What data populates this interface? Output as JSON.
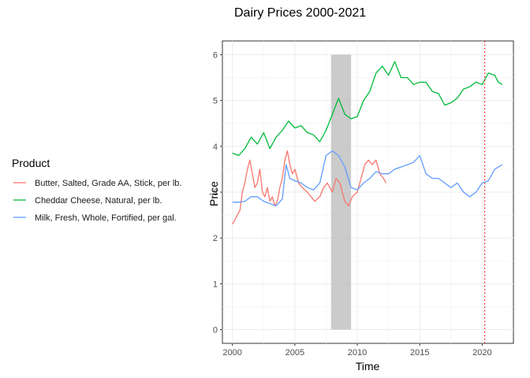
{
  "chart_data": {
    "type": "line",
    "title": "Dairy Prices 2000-2021",
    "xlabel": "Time",
    "ylabel": "Price",
    "xlim": [
      1999.2,
      2022.5
    ],
    "ylim": [
      -0.3,
      6.3
    ],
    "x_ticks": [
      2000,
      2005,
      2010,
      2015,
      2020
    ],
    "y_ticks": [
      0,
      1,
      2,
      3,
      4,
      5,
      6
    ],
    "grid": true,
    "legend": {
      "title": "Product",
      "position": "left"
    },
    "recession_band": {
      "x": [
        2007.9,
        2009.5
      ],
      "y": [
        0,
        6
      ],
      "color": "#bebebe"
    },
    "vline": {
      "x": 2020.2,
      "color": "#ff0000",
      "style": "dotted"
    },
    "series": [
      {
        "name": "Butter, Salted, Grade AA, Stick, per lb.",
        "color": "#f8766d",
        "x": [
          2000.0,
          2000.2,
          2000.4,
          2000.6,
          2000.8,
          2001.0,
          2001.2,
          2001.4,
          2001.6,
          2001.8,
          2002.0,
          2002.2,
          2002.4,
          2002.6,
          2002.8,
          2003.0,
          2003.2,
          2003.4,
          2003.6,
          2003.8,
          2004.0,
          2004.2,
          2004.4,
          2004.6,
          2004.8,
          2005.0,
          2005.3,
          2005.6,
          2006.0,
          2006.3,
          2006.6,
          2007.0,
          2007.3,
          2007.6,
          2008.0,
          2008.3,
          2008.6,
          2009.0,
          2009.3,
          2009.6,
          2010.0,
          2010.3,
          2010.6,
          2010.9,
          2011.2,
          2011.5,
          2011.8,
          2012.1,
          2012.3
        ],
        "y": [
          2.3,
          2.4,
          2.5,
          2.6,
          3.0,
          3.2,
          3.5,
          3.7,
          3.4,
          3.1,
          3.2,
          3.5,
          3.0,
          2.9,
          3.1,
          2.8,
          2.9,
          2.7,
          2.8,
          3.1,
          3.3,
          3.7,
          3.9,
          3.6,
          3.4,
          3.5,
          3.2,
          3.1,
          3.0,
          2.9,
          2.8,
          2.9,
          3.1,
          3.2,
          3.0,
          3.3,
          3.2,
          2.8,
          2.7,
          2.9,
          3.0,
          3.3,
          3.6,
          3.7,
          3.6,
          3.7,
          3.4,
          3.3,
          3.2
        ]
      },
      {
        "name": "Cheddar Cheese, Natural, per lb.",
        "color": "#00ba38",
        "x": [
          2000.0,
          2000.5,
          2001.0,
          2001.5,
          2002.0,
          2002.5,
          2003.0,
          2003.5,
          2004.0,
          2004.5,
          2005.0,
          2005.5,
          2006.0,
          2006.5,
          2007.0,
          2007.5,
          2008.0,
          2008.5,
          2009.0,
          2009.5,
          2010.0,
          2010.5,
          2011.0,
          2011.5,
          2012.0,
          2012.5,
          2013.0,
          2013.5,
          2014.0,
          2014.5,
          2015.0,
          2015.5,
          2016.0,
          2016.5,
          2017.0,
          2017.5,
          2018.0,
          2018.5,
          2019.0,
          2019.5,
          2020.0,
          2020.5,
          2021.0,
          2021.3,
          2021.6
        ],
        "y": [
          3.85,
          3.8,
          3.95,
          4.2,
          4.05,
          4.3,
          3.95,
          4.2,
          4.35,
          4.55,
          4.4,
          4.45,
          4.3,
          4.25,
          4.1,
          4.35,
          4.7,
          5.05,
          4.7,
          4.6,
          4.65,
          5.0,
          5.2,
          5.6,
          5.75,
          5.55,
          5.85,
          5.5,
          5.5,
          5.35,
          5.4,
          5.4,
          5.2,
          5.15,
          4.9,
          4.95,
          5.05,
          5.25,
          5.3,
          5.4,
          5.35,
          5.6,
          5.55,
          5.4,
          5.35
        ]
      },
      {
        "name": "Milk, Fresh, Whole, Fortified, per gal.",
        "color": "#619cff",
        "x": [
          2000.0,
          2000.5,
          2001.0,
          2001.5,
          2002.0,
          2002.5,
          2003.0,
          2003.5,
          2004.0,
          2004.3,
          2004.6,
          2005.0,
          2005.5,
          2006.0,
          2006.5,
          2007.0,
          2007.5,
          2008.0,
          2008.5,
          2009.0,
          2009.5,
          2010.0,
          2010.5,
          2011.0,
          2011.5,
          2012.0,
          2012.5,
          2013.0,
          2013.5,
          2014.0,
          2014.5,
          2015.0,
          2015.5,
          2016.0,
          2016.5,
          2017.0,
          2017.5,
          2018.0,
          2018.5,
          2019.0,
          2019.5,
          2020.0,
          2020.5,
          2021.0,
          2021.3,
          2021.6
        ],
        "y": [
          2.78,
          2.78,
          2.8,
          2.9,
          2.9,
          2.8,
          2.75,
          2.7,
          2.85,
          3.6,
          3.3,
          3.25,
          3.2,
          3.1,
          3.05,
          3.2,
          3.8,
          3.9,
          3.8,
          3.55,
          3.1,
          3.05,
          3.2,
          3.3,
          3.45,
          3.4,
          3.4,
          3.5,
          3.55,
          3.6,
          3.65,
          3.8,
          3.4,
          3.3,
          3.3,
          3.2,
          3.1,
          3.2,
          3.0,
          2.9,
          3.0,
          3.2,
          3.25,
          3.5,
          3.55,
          3.6
        ]
      }
    ]
  }
}
